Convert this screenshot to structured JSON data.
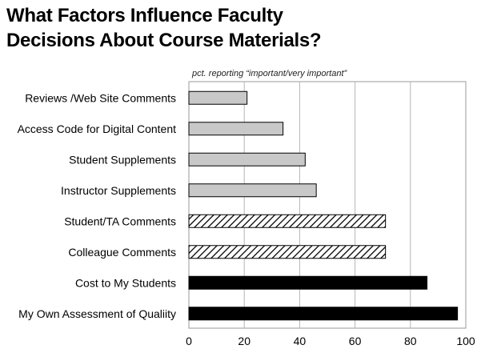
{
  "chart_data": {
    "type": "bar",
    "orientation": "horizontal",
    "title_lines": [
      "What Factors Influence Faculty",
      "Decisions About Course Materials?"
    ],
    "subtitle": "pct. reporting “important/very important”",
    "categories": [
      "Reviews /Web Site Comments",
      "Access Code for Digital Content",
      "Student Supplements",
      "Instructor Supplements",
      "Student/TA Comments",
      "Colleague Comments",
      "Cost to My Students",
      "My Own Assessment of Qualiity"
    ],
    "values": [
      21,
      34,
      42,
      46,
      71,
      71,
      86,
      97
    ],
    "bar_styles": [
      "light",
      "light",
      "light",
      "light",
      "hatched",
      "hatched",
      "dark",
      "dark"
    ],
    "xlim": [
      0,
      100
    ],
    "xticks": [
      "0",
      "20",
      "40",
      "60",
      "80",
      "100"
    ],
    "xtick_values": [
      0,
      20,
      40,
      60,
      80,
      100
    ],
    "grid": "vertical",
    "colors": {
      "light": "#c8c8c8",
      "dark": "#000000",
      "hatch": "#000000",
      "grid": "#b5b5b5"
    }
  }
}
